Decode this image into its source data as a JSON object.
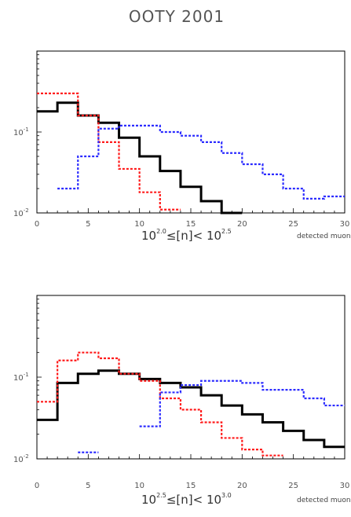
{
  "title": "OOTY 2001",
  "colors": {
    "black": "#000000",
    "red": "#ff1a1a",
    "blue": "#2b2bff",
    "text": "#555555"
  },
  "chart_data": [
    {
      "type": "step",
      "title": "",
      "xlabel": {
        "base1": "10",
        "exp1": "2.0",
        "mid": "≤[n]< ",
        "base2": "10",
        "exp2": "2.5"
      },
      "xnote": "detected muon",
      "xlim": [
        0,
        30
      ],
      "ylim": [
        0.01,
        1
      ],
      "yscale": "log",
      "xticks": [
        0,
        5,
        10,
        15,
        20,
        25,
        30
      ],
      "xtick_labels": [
        "0",
        "5",
        "10",
        "15",
        "20",
        "25",
        "30"
      ],
      "yticks": [
        0.1,
        0.01
      ],
      "ytick_labels": [
        "10-1",
        "10-2"
      ],
      "bin_edges": [
        0,
        2,
        4,
        6,
        8,
        10,
        12,
        14,
        16,
        18,
        20,
        22,
        24,
        26,
        28,
        30
      ],
      "series": [
        {
          "color": "#000000",
          "style": "solid",
          "values": [
            0.18,
            0.23,
            0.16,
            0.13,
            0.085,
            0.05,
            0.033,
            0.021,
            0.014,
            0.01,
            null,
            null,
            null,
            null,
            null
          ]
        },
        {
          "color": "#ff1a1a",
          "style": "dashed",
          "values": [
            0.3,
            0.3,
            0.16,
            0.075,
            0.035,
            0.018,
            0.011,
            null,
            null,
            null,
            null,
            null,
            null,
            null,
            null
          ]
        },
        {
          "color": "#2b2bff",
          "style": "dashed",
          "values": [
            null,
            0.02,
            0.05,
            0.11,
            0.12,
            0.12,
            0.1,
            0.09,
            0.075,
            0.055,
            0.04,
            0.03,
            0.02,
            0.015,
            0.016
          ]
        }
      ]
    },
    {
      "type": "step",
      "title": "",
      "xlabel": {
        "base1": "10",
        "exp1": "2.5",
        "mid": "≤[n]< ",
        "base2": "10",
        "exp2": "3.0"
      },
      "xnote": "detected muon",
      "xlim": [
        0,
        30
      ],
      "ylim": [
        0.01,
        1
      ],
      "yscale": "log",
      "xticks": [
        0,
        5,
        10,
        15,
        20,
        25,
        30
      ],
      "xtick_labels": [
        "0",
        "5",
        "10",
        "15",
        "20",
        "25",
        "30"
      ],
      "yticks": [
        0.1,
        0.01
      ],
      "ytick_labels": [
        "10-1",
        "10-2"
      ],
      "bin_edges": [
        0,
        2,
        4,
        6,
        8,
        10,
        12,
        14,
        16,
        18,
        20,
        22,
        24,
        26,
        28,
        30
      ],
      "series": [
        {
          "color": "#000000",
          "style": "solid",
          "values": [
            0.03,
            0.085,
            0.11,
            0.12,
            0.11,
            0.095,
            0.085,
            0.075,
            0.06,
            0.045,
            0.035,
            0.028,
            0.022,
            0.017,
            0.014
          ]
        },
        {
          "color": "#ff1a1a",
          "style": "dashed",
          "values": [
            0.05,
            0.16,
            0.2,
            0.17,
            0.11,
            0.09,
            0.055,
            0.04,
            0.028,
            0.018,
            0.013,
            0.011,
            null,
            null,
            null
          ]
        },
        {
          "color": "#2b2bff",
          "style": "dashed",
          "values": [
            null,
            null,
            0.012,
            null,
            null,
            0.025,
            0.065,
            0.08,
            0.09,
            0.09,
            0.085,
            0.07,
            0.07,
            0.055,
            0.045
          ]
        }
      ]
    }
  ]
}
